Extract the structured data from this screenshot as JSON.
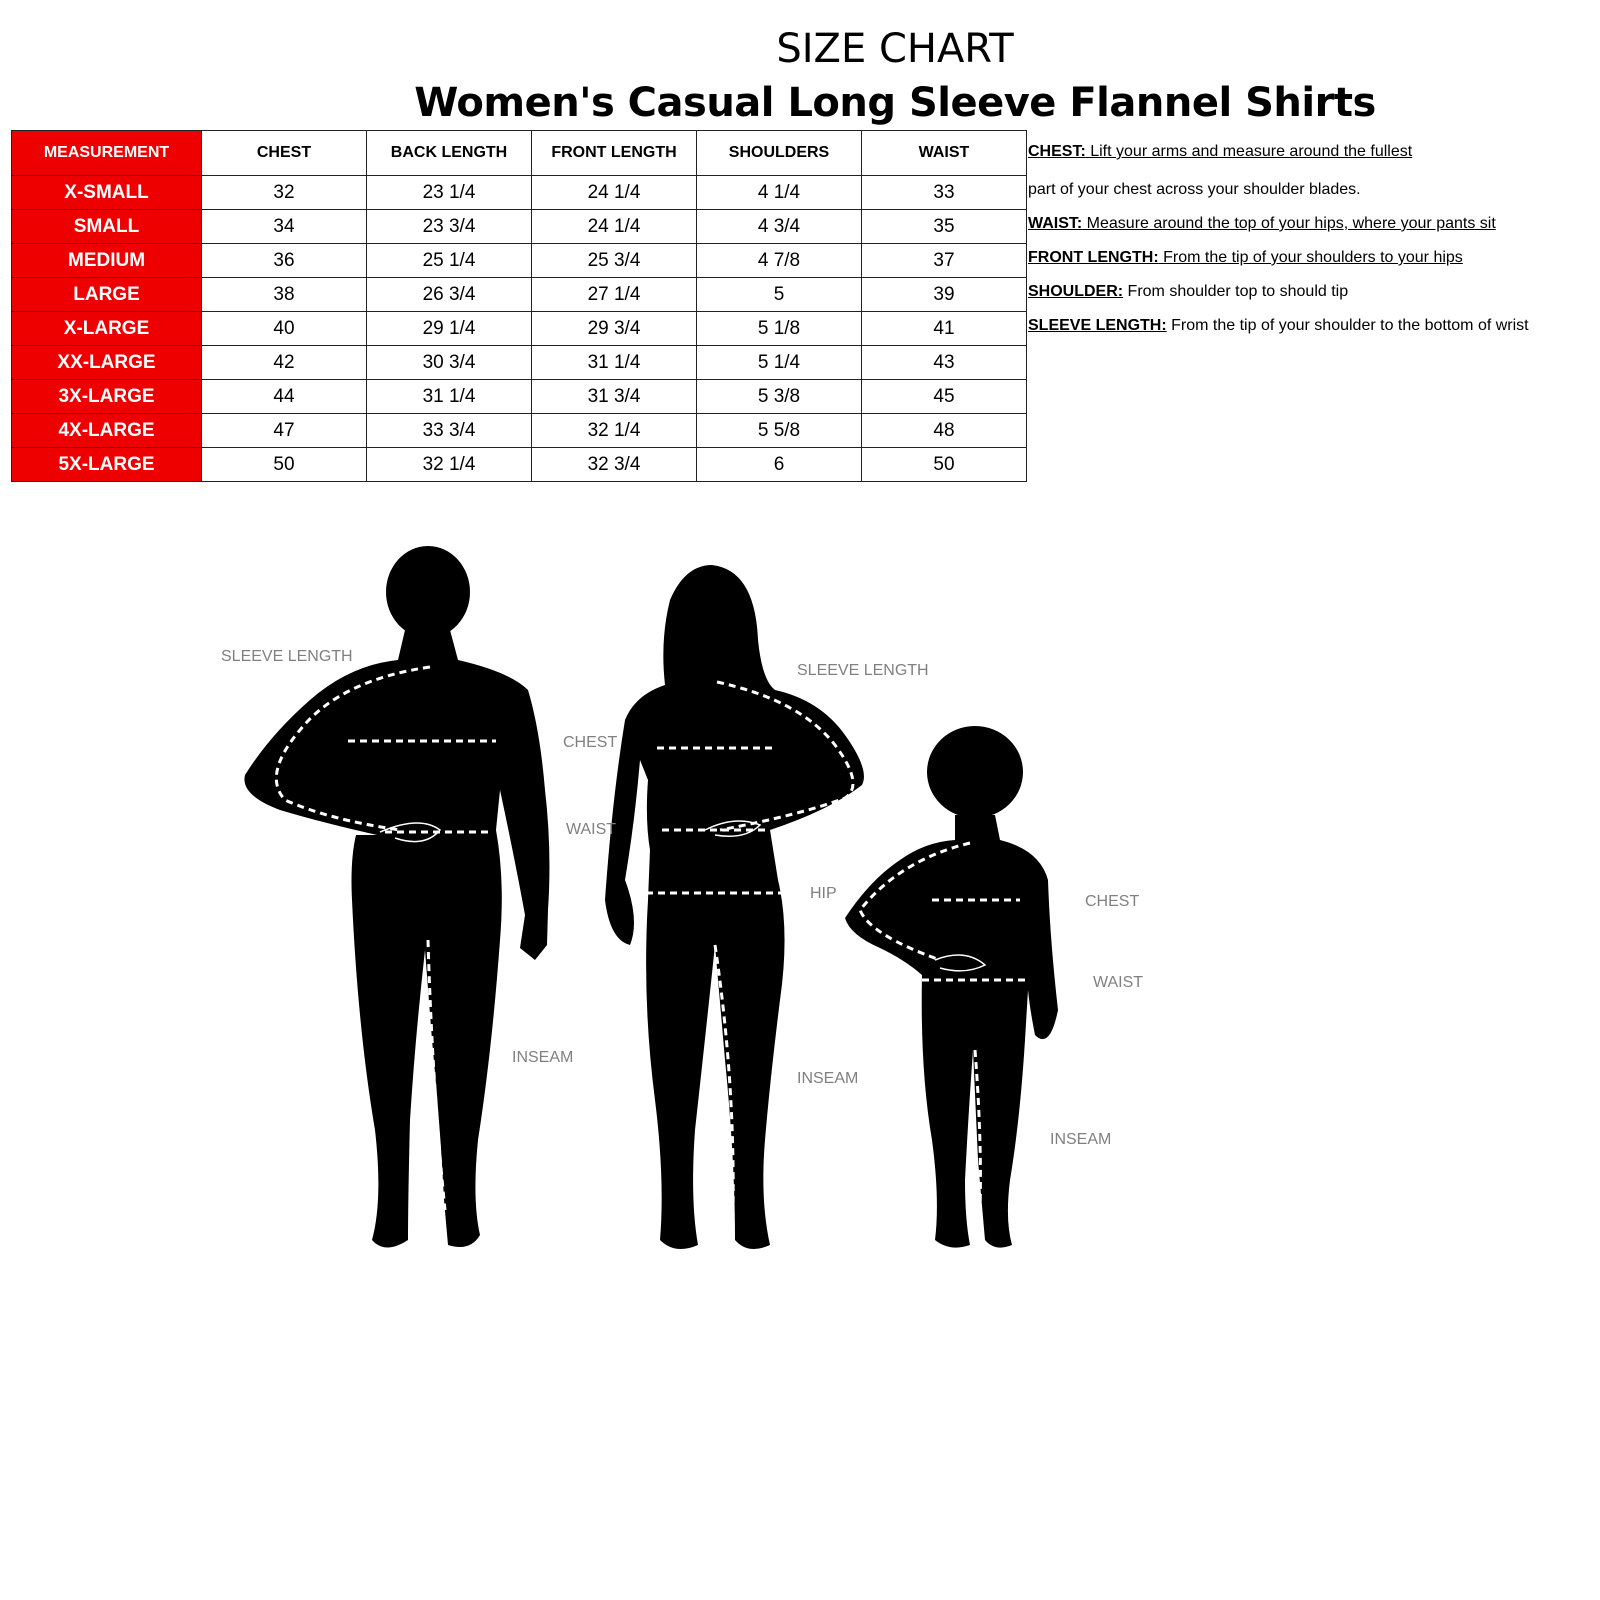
{
  "title": "SIZE CHART",
  "subtitle": "Women's  Casual Long Sleeve Flannel Shirts",
  "table": {
    "headers": [
      "MEASUREMENT",
      "CHEST",
      "BACK LENGTH",
      "FRONT LENGTH",
      "SHOULDERS",
      "WAIST"
    ],
    "rows": [
      [
        "X-SMALL",
        "32",
        "23 1/4",
        "24 1/4",
        "4 1/4",
        "33"
      ],
      [
        "SMALL",
        "34",
        "23 3/4",
        "24 1/4",
        "4 3/4",
        "35"
      ],
      [
        "MEDIUM",
        "36",
        "25 1/4",
        "25 3/4",
        "4 7/8",
        "37"
      ],
      [
        "LARGE",
        "38",
        "26 3/4",
        "27 1/4",
        "5",
        "39"
      ],
      [
        "X-LARGE",
        "40",
        "29 1/4",
        "29 3/4",
        "5 1/8",
        "41"
      ],
      [
        "XX-LARGE",
        "42",
        "30 3/4",
        "31 1/4",
        "5 1/4",
        "43"
      ],
      [
        "3X-LARGE",
        "44",
        "31 1/4",
        "31 3/4",
        "5 3/8",
        "45"
      ],
      [
        "4X-LARGE",
        "47",
        "33 3/4",
        "32 1/4",
        "5 5/8",
        "48"
      ],
      [
        "5X-LARGE",
        "50",
        "32 1/4",
        "32 3/4",
        "6",
        "50"
      ]
    ]
  },
  "notes": [
    {
      "term": "CHEST:",
      "text": " Lift your arms and measure around the fullest ",
      "underline": true
    },
    {
      "term": "",
      "text": "part of your chest across your shoulder blades.",
      "underline": false
    },
    {
      "term": "WAIST:",
      "text": " Measure around the top of  your hips, where your pants sit",
      "underline": true
    },
    {
      "term": "FRONT LENGTH:",
      "text": " From the tip of your shoulders to your hips",
      "underline": true
    },
    {
      "term": "SHOULDER:",
      "text": " From shoulder top to should tip",
      "underline": false
    },
    {
      "term": "SLEEVE LENGTH:",
      "text": " From the tip of your shoulder to the bottom of wrist",
      "underline": false
    }
  ],
  "figures": {
    "man": {
      "sleeve": "SLEEVE LENGTH",
      "chest": "CHEST",
      "waist": "WAIST",
      "inseam": "INSEAM"
    },
    "woman": {
      "sleeve": "SLEEVE LENGTH",
      "hip": "HIP",
      "inseam": "INSEAM"
    },
    "child": {
      "chest": "CHEST",
      "waist": "WAIST",
      "inseam": "INSEAM"
    }
  },
  "colors": {
    "header_red": "#ee0000",
    "label_gray": "#808080"
  }
}
